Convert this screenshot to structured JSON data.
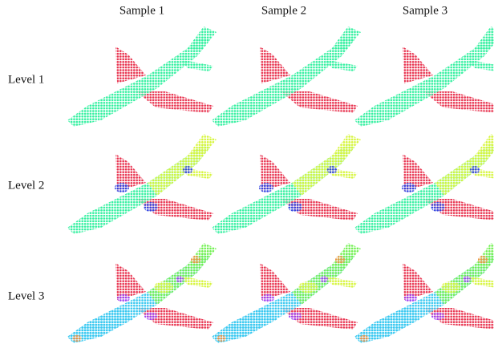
{
  "columns": [
    "Sample 1",
    "Sample 2",
    "Sample 3"
  ],
  "rows": [
    "Level 1",
    "Level 2",
    "Level 3"
  ]
}
